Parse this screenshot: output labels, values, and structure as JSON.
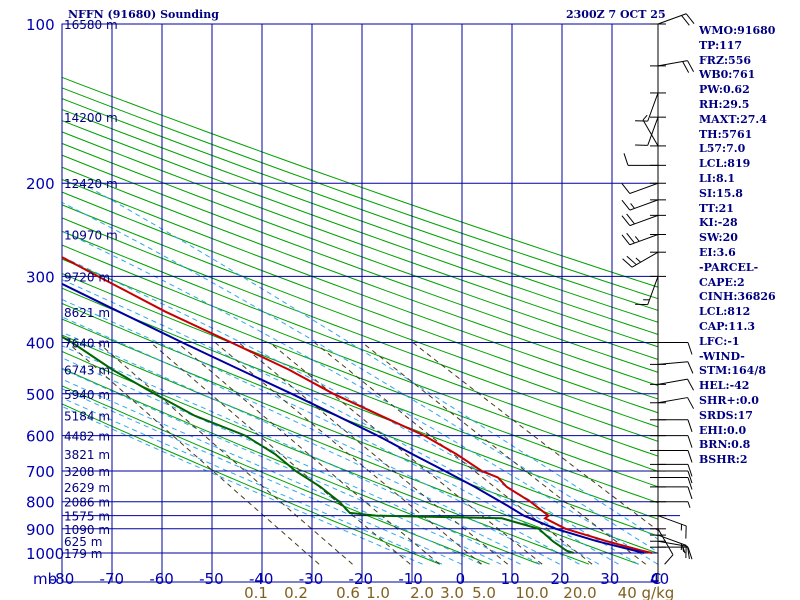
{
  "header": {
    "title": "NFFN (91680) Sounding",
    "datetime": "2300Z  7 OCT 25"
  },
  "indices": [
    "WMO:91680",
    "TP:117",
    "FRZ:556",
    "WB0:761",
    "PW:0.62",
    "RH:29.5",
    "MAXT:27.4",
    "TH:5761",
    "L57:7.0",
    "LCL:819",
    "LI:8.1",
    "SI:15.8",
    "TT:21",
    "KI:-28",
    "SW:20",
    "EI:3.6",
    "-PARCEL-",
    "CAPE:2",
    "CINH:36826",
    "LCL:812",
    "CAP:11.3",
    "LFC:-1",
    "-WIND-",
    "STM:164/8",
    "HEL:-42",
    "SHR+:0.0",
    "SRDS:17",
    "EHI:0.0",
    "BRN:0.8",
    "BSHR:2"
  ],
  "chart_data": {
    "type": "line",
    "title": "NFFN (91680) Sounding",
    "subtitle": "2300Z  7 OCT 25",
    "y_axis_unit_label": "mb",
    "x_axis_unit_label": "C",
    "pressure_ticks": [
      100,
      200,
      300,
      400,
      500,
      600,
      700,
      800,
      900,
      1000
    ],
    "temperature_ticks": [
      -80,
      -70,
      -60,
      -50,
      -40,
      -30,
      -20,
      -10,
      0,
      10,
      20,
      30,
      40
    ],
    "temperature_tick_labels": [
      "-80",
      "-70",
      "-60",
      "-50",
      "-40",
      "-30",
      "-20",
      "-10",
      "0",
      "10",
      "20",
      "30",
      "40"
    ],
    "mixing_ratio_labels": [
      "0.1",
      "0.2",
      "0.6",
      "1.0",
      "2.0",
      "3.0",
      "5.0",
      "10.0",
      "20.0",
      "40 g/kg"
    ],
    "mixing_ratio_values": [
      0.1,
      0.2,
      0.6,
      1.0,
      2.0,
      3.0,
      5.0,
      10.0,
      20.0,
      40.0
    ],
    "height_labels": [
      {
        "p": 100,
        "label": "16580 m"
      },
      {
        "p": 150,
        "label": "14200 m"
      },
      {
        "p": 200,
        "label": "12420 m"
      },
      {
        "p": 250,
        "label": "10970 m"
      },
      {
        "p": 300,
        "label": "9720 m"
      },
      {
        "p": 350,
        "label": "8621 m"
      },
      {
        "p": 400,
        "label": "7640 m"
      },
      {
        "p": 450,
        "label": "6743 m"
      },
      {
        "p": 500,
        "label": "5940 m"
      },
      {
        "p": 550,
        "label": "5184 m"
      },
      {
        "p": 600,
        "label": "4482 m"
      },
      {
        "p": 650,
        "label": "3821 m"
      },
      {
        "p": 700,
        "label": "3208 m"
      },
      {
        "p": 750,
        "label": "2629 m"
      },
      {
        "p": 800,
        "label": "2086 m"
      },
      {
        "p": 850,
        "label": "1575 m"
      },
      {
        "p": 900,
        "label": "1090 m"
      },
      {
        "p": 950,
        "label": "625 m"
      },
      {
        "p": 1000,
        "label": "179 m"
      }
    ],
    "series": [
      {
        "name": "Temperature",
        "color": "#c80000",
        "points": [
          [
            1000,
            29.0
          ],
          [
            990,
            27.4
          ],
          [
            950,
            22.0
          ],
          [
            900,
            16.0
          ],
          [
            860,
            13.8
          ],
          [
            850,
            15.0
          ],
          [
            800,
            14.0
          ],
          [
            750,
            12.0
          ],
          [
            720,
            12.0
          ],
          [
            700,
            10.0
          ],
          [
            650,
            8.0
          ],
          [
            600,
            5.0
          ],
          [
            550,
            0.0
          ],
          [
            500,
            -5.5
          ],
          [
            450,
            -10.0
          ],
          [
            400,
            -16.5
          ],
          [
            350,
            -24.0
          ],
          [
            300,
            -31.0
          ],
          [
            250,
            -39.0
          ],
          [
            220,
            -46.0
          ],
          [
            200,
            -50.0
          ],
          [
            150,
            -57.0
          ],
          [
            130,
            -63.5
          ],
          [
            117,
            -70.5
          ],
          [
            100,
            -73.5
          ]
        ]
      },
      {
        "name": "Dewpoint",
        "color": "#006400",
        "points": [
          [
            1000,
            13.0
          ],
          [
            990,
            12.0
          ],
          [
            950,
            11.0
          ],
          [
            900,
            10.5
          ],
          [
            860,
            5.0
          ],
          [
            850,
            -20.0
          ],
          [
            840,
            -25.0
          ],
          [
            800,
            -25.0
          ],
          [
            750,
            -26.0
          ],
          [
            700,
            -28.0
          ],
          [
            650,
            -29.0
          ],
          [
            600,
            -31.5
          ],
          [
            550,
            -38.0
          ],
          [
            500,
            -42.0
          ],
          [
            450,
            -46.0
          ],
          [
            400,
            -49.0
          ],
          [
            380,
            -51.0
          ],
          [
            350,
            -52.0
          ],
          [
            300,
            -54.0
          ],
          [
            250,
            -58.0
          ],
          [
            220,
            -60.0
          ],
          [
            200,
            -63.0
          ],
          [
            180,
            -65.5
          ],
          [
            150,
            -70.0
          ],
          [
            130,
            -75.0
          ],
          [
            117,
            -78.0
          ],
          [
            100,
            -84.0
          ]
        ]
      },
      {
        "name": "Parcel",
        "color": "#0000a0",
        "points": [
          [
            1000,
            27.4
          ],
          [
            950,
            20.0
          ],
          [
            900,
            14.0
          ],
          [
            850,
            10.0
          ],
          [
            812,
            8.5
          ],
          [
            750,
            5.5
          ],
          [
            700,
            2.5
          ],
          [
            650,
            -1.0
          ],
          [
            600,
            -4.5
          ],
          [
            550,
            -9.0
          ],
          [
            500,
            -14.0
          ],
          [
            450,
            -20.0
          ],
          [
            400,
            -26.5
          ],
          [
            350,
            -33.5
          ],
          [
            300,
            -41.5
          ],
          [
            250,
            -51.0
          ],
          [
            200,
            -62.0
          ],
          [
            150,
            -75.0
          ],
          [
            100,
            -90.0
          ]
        ]
      }
    ],
    "wind_barbs": [
      {
        "p": 100,
        "dir": 70,
        "spd": 20
      },
      {
        "p": 120,
        "dir": 80,
        "spd": 20
      },
      {
        "p": 135,
        "dir": 200,
        "spd": 10
      },
      {
        "p": 150,
        "dir": 200,
        "spd": 10
      },
      {
        "p": 170,
        "dir": 330,
        "spd": 5
      },
      {
        "p": 185,
        "dir": 270,
        "spd": 10
      },
      {
        "p": 200,
        "dir": 250,
        "spd": 10
      },
      {
        "p": 215,
        "dir": 250,
        "spd": 15
      },
      {
        "p": 230,
        "dir": 250,
        "spd": 20
      },
      {
        "p": 250,
        "dir": 250,
        "spd": 25
      },
      {
        "p": 270,
        "dir": 240,
        "spd": 25
      },
      {
        "p": 300,
        "dir": 200,
        "spd": 15
      },
      {
        "p": 400,
        "dir": 90,
        "spd": 10
      },
      {
        "p": 440,
        "dir": 85,
        "spd": 10
      },
      {
        "p": 480,
        "dir": 80,
        "spd": 10
      },
      {
        "p": 520,
        "dir": 80,
        "spd": 10
      },
      {
        "p": 560,
        "dir": 90,
        "spd": 10
      },
      {
        "p": 600,
        "dir": 90,
        "spd": 10
      },
      {
        "p": 640,
        "dir": 90,
        "spd": 10
      },
      {
        "p": 680,
        "dir": 90,
        "spd": 10
      },
      {
        "p": 700,
        "dir": 90,
        "spd": 10
      },
      {
        "p": 720,
        "dir": 90,
        "spd": 10
      },
      {
        "p": 750,
        "dir": 90,
        "spd": 10
      },
      {
        "p": 800,
        "dir": 90,
        "spd": 5
      },
      {
        "p": 850,
        "dir": 110,
        "spd": 15
      },
      {
        "p": 900,
        "dir": 150,
        "spd": 10
      },
      {
        "p": 925,
        "dir": 110,
        "spd": 15
      },
      {
        "p": 950,
        "dir": 100,
        "spd": 15
      },
      {
        "p": 975,
        "dir": 90,
        "spd": 15
      }
    ]
  }
}
